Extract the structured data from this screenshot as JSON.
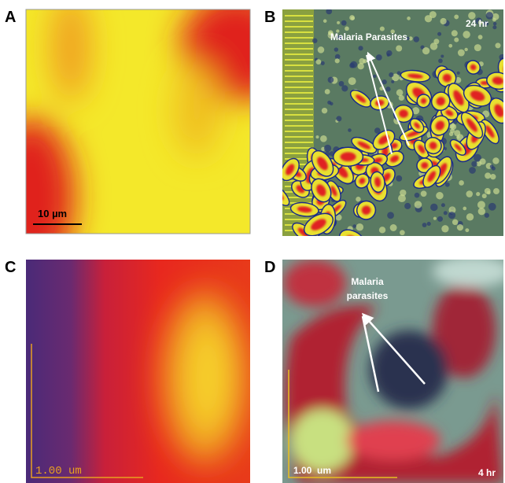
{
  "panels": [
    {
      "label": "A",
      "scale_bar": "10 µm"
    },
    {
      "label": "B",
      "annotation": "Malaria Parasites",
      "time": "24 hr"
    },
    {
      "label": "C",
      "scale_bar": "1.00 um"
    },
    {
      "label": "D",
      "annotation": [
        "Malaria",
        "parasites"
      ],
      "scale_bar": "1.00  um",
      "time": "4 hr"
    }
  ]
}
